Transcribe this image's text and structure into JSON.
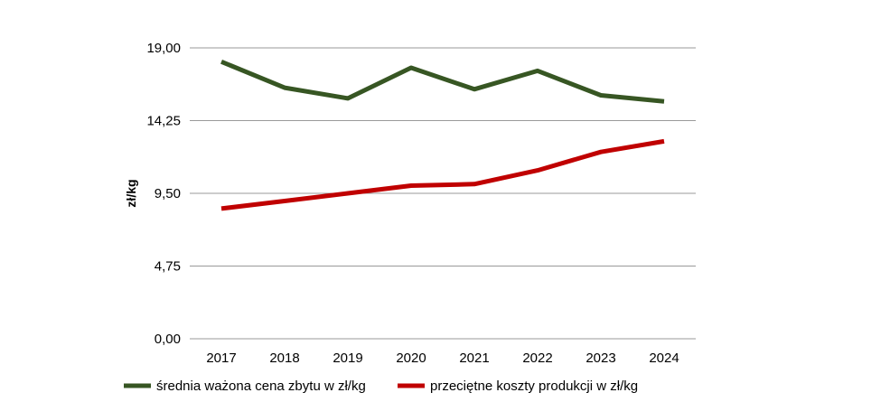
{
  "chart_data": {
    "type": "line",
    "title": "",
    "xlabel": "",
    "ylabel": "zł/kg",
    "x": [
      "2017",
      "2018",
      "2019",
      "2020",
      "2021",
      "2022",
      "2023",
      "2024"
    ],
    "ylim": [
      0,
      19
    ],
    "yticks": [
      0,
      4.75,
      9.5,
      14.25,
      19
    ],
    "ytick_labels": [
      "0,00",
      "4,75",
      "9,50",
      "14,25",
      "19,00"
    ],
    "grid": true,
    "legend_position": "bottom",
    "series": [
      {
        "name": "średnia ważona cena zbytu w zł/kg",
        "color": "#375623",
        "values": [
          18.1,
          16.4,
          15.7,
          17.7,
          16.3,
          17.5,
          15.9,
          15.5
        ]
      },
      {
        "name": "przeciętne koszty produkcji w zł/kg",
        "color": "#C00000",
        "values": [
          8.5,
          9.0,
          9.5,
          10.0,
          10.1,
          11.0,
          12.2,
          12.9
        ]
      }
    ]
  }
}
